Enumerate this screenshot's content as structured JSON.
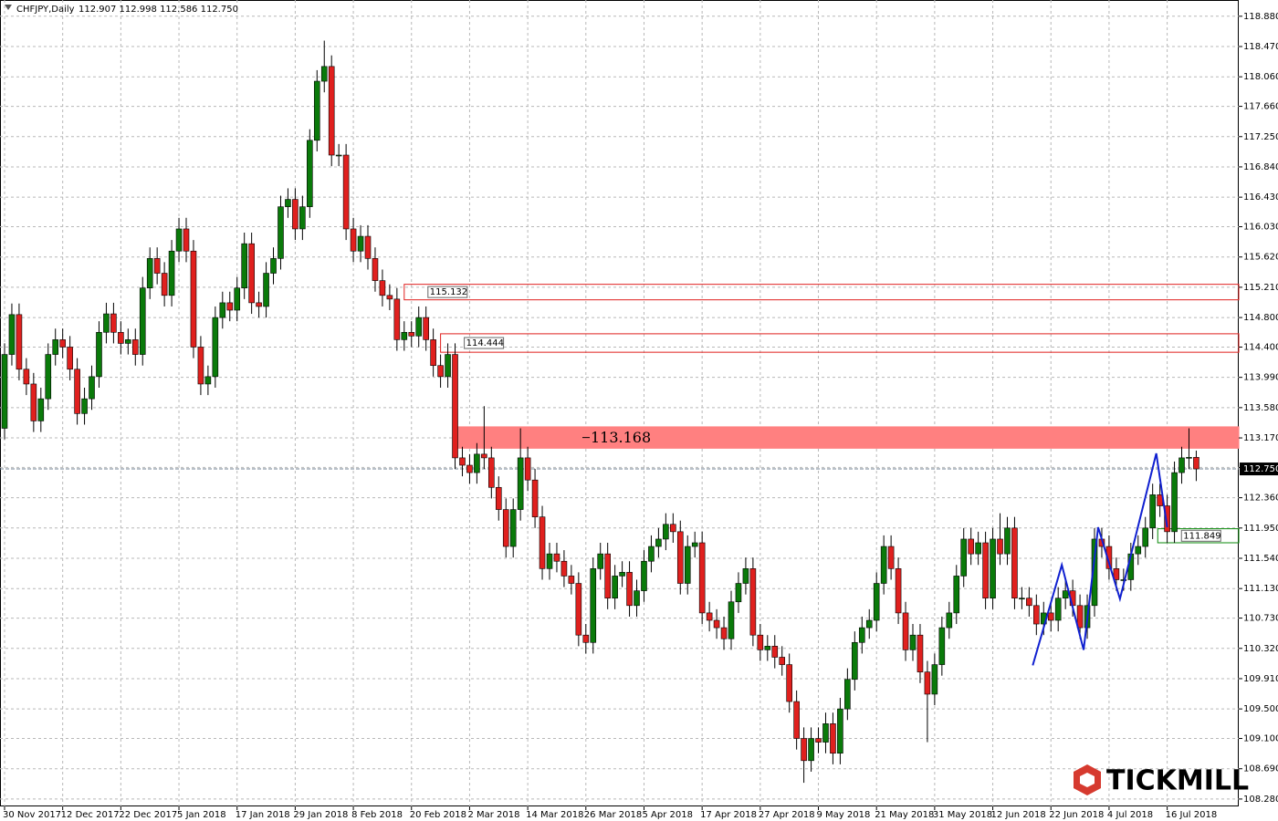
{
  "chart_data": {
    "type": "candlestick",
    "title": "CHFJPY,Daily",
    "subtitle": "112.907 112.998 112.586 112.750",
    "watermark": "TICKMILL",
    "up_color": "#0a7a0a",
    "down_color": "#e0201e",
    "grid": true,
    "ylim": [
      108.18,
      119.1
    ],
    "yticks": [
      {
        "value": 118.88,
        "label": "118.880"
      },
      {
        "value": 118.47,
        "label": "118.470"
      },
      {
        "value": 118.06,
        "label": "118.060"
      },
      {
        "value": 117.66,
        "label": "117.660"
      },
      {
        "value": 117.25,
        "label": "117.250"
      },
      {
        "value": 116.84,
        "label": "116.840"
      },
      {
        "value": 116.43,
        "label": "116.430"
      },
      {
        "value": 116.03,
        "label": "116.030"
      },
      {
        "value": 115.62,
        "label": "115.620"
      },
      {
        "value": 115.21,
        "label": "115.210"
      },
      {
        "value": 114.8,
        "label": "114.800"
      },
      {
        "value": 114.4,
        "label": "114.400"
      },
      {
        "value": 113.99,
        "label": "113.990"
      },
      {
        "value": 113.58,
        "label": "113.580"
      },
      {
        "value": 113.17,
        "label": "113.170"
      },
      {
        "value": 112.77,
        "label": "112.770"
      },
      {
        "value": 112.36,
        "label": "112.360"
      },
      {
        "value": 111.95,
        "label": "111.950"
      },
      {
        "value": 111.54,
        "label": "111.540"
      },
      {
        "value": 111.13,
        "label": "111.130"
      },
      {
        "value": 110.73,
        "label": "110.730"
      },
      {
        "value": 110.32,
        "label": "110.320"
      },
      {
        "value": 109.91,
        "label": "109.910"
      },
      {
        "value": 109.5,
        "label": "109.500"
      },
      {
        "value": 109.1,
        "label": "109.100"
      },
      {
        "value": 108.69,
        "label": "108.690"
      },
      {
        "value": 108.28,
        "label": "108.280"
      }
    ],
    "categories": [
      "30 Nov 2017",
      null,
      null,
      null,
      null,
      null,
      null,
      null,
      "12 Dec 2017",
      null,
      null,
      null,
      null,
      null,
      null,
      null,
      "22 Dec 2017",
      null,
      null,
      null,
      null,
      null,
      null,
      null,
      "5 Jan 2018",
      null,
      null,
      null,
      null,
      null,
      null,
      null,
      "17 Jan 2018",
      null,
      null,
      null,
      null,
      null,
      null,
      null,
      "29 Jan 2018",
      null,
      null,
      null,
      null,
      null,
      null,
      null,
      "8 Feb 2018",
      null,
      null,
      null,
      null,
      null,
      null,
      null,
      "20 Feb 2018",
      null,
      null,
      null,
      null,
      null,
      null,
      null,
      "2 Mar 2018",
      null,
      null,
      null,
      null,
      null,
      null,
      null,
      "14 Mar 2018",
      null,
      null,
      null,
      null,
      null,
      null,
      null,
      "26 Mar 2018",
      null,
      null,
      null,
      null,
      null,
      null,
      null,
      "5 Apr 2018",
      null,
      null,
      null,
      null,
      null,
      null,
      null,
      "17 Apr 2018",
      null,
      null,
      null,
      null,
      null,
      null,
      null,
      "27 Apr 2018",
      null,
      null,
      null,
      null,
      null,
      null,
      null,
      "9 May 2018",
      null,
      null,
      null,
      null,
      null,
      null,
      null,
      "21 May 2018",
      null,
      null,
      null,
      null,
      null,
      null,
      null,
      "31 May 2018",
      null,
      null,
      null,
      null,
      null,
      null,
      null,
      "12 Jun 2018",
      null,
      null,
      null,
      null,
      null,
      null,
      null,
      "22 Jun 2018",
      null,
      null,
      null,
      null,
      null,
      null,
      null,
      "4 Jul 2018",
      null,
      null,
      null,
      null,
      null,
      null,
      null,
      "16 Jul 2018",
      null,
      null,
      null,
      null
    ],
    "candles": [
      [
        113.3,
        114.45,
        113.15,
        114.3
      ],
      [
        114.3,
        114.99,
        114.15,
        114.84
      ],
      [
        114.84,
        114.99,
        113.95,
        114.1
      ],
      [
        114.1,
        114.25,
        113.75,
        113.9
      ],
      [
        113.9,
        114.05,
        113.25,
        113.4
      ],
      [
        113.4,
        113.85,
        113.25,
        113.7
      ],
      [
        113.7,
        114.45,
        113.55,
        114.3
      ],
      [
        114.3,
        114.65,
        114.15,
        114.5
      ],
      [
        114.5,
        114.65,
        114.25,
        114.4
      ],
      [
        114.4,
        114.55,
        113.95,
        114.1
      ],
      [
        114.1,
        114.25,
        113.35,
        113.5
      ],
      [
        113.5,
        113.85,
        113.35,
        113.7
      ],
      [
        113.7,
        114.15,
        113.55,
        114.0
      ],
      [
        114.0,
        114.75,
        113.85,
        114.6
      ],
      [
        114.6,
        115.0,
        114.45,
        114.85
      ],
      [
        114.85,
        115.0,
        114.45,
        114.6
      ],
      [
        114.6,
        114.75,
        114.3,
        114.45
      ],
      [
        114.45,
        114.65,
        114.3,
        114.5
      ],
      [
        114.5,
        114.65,
        114.15,
        114.3
      ],
      [
        114.3,
        115.35,
        114.15,
        115.2
      ],
      [
        115.2,
        115.75,
        115.05,
        115.6
      ],
      [
        115.6,
        115.75,
        115.25,
        115.4
      ],
      [
        115.4,
        115.55,
        114.95,
        115.1
      ],
      [
        115.1,
        115.85,
        114.95,
        115.7
      ],
      [
        115.7,
        116.15,
        115.55,
        116.0
      ],
      [
        116.0,
        116.15,
        115.55,
        115.7
      ],
      [
        115.7,
        115.85,
        114.25,
        114.4
      ],
      [
        114.4,
        114.55,
        113.75,
        113.9
      ],
      [
        113.9,
        114.15,
        113.75,
        114.0
      ],
      [
        114.0,
        114.95,
        113.85,
        114.8
      ],
      [
        114.8,
        115.15,
        114.65,
        115.0
      ],
      [
        115.0,
        115.15,
        114.75,
        114.9
      ],
      [
        114.9,
        115.35,
        114.75,
        115.2
      ],
      [
        115.2,
        115.95,
        115.05,
        115.8
      ],
      [
        115.8,
        115.95,
        114.85,
        115.0
      ],
      [
        115.0,
        115.15,
        114.8,
        114.95
      ],
      [
        114.95,
        115.55,
        114.8,
        115.4
      ],
      [
        115.4,
        115.75,
        115.25,
        115.6
      ],
      [
        115.6,
        116.45,
        115.45,
        116.3
      ],
      [
        116.3,
        116.55,
        116.15,
        116.4
      ],
      [
        116.4,
        116.55,
        115.85,
        116.0
      ],
      [
        116.0,
        116.45,
        115.85,
        116.3
      ],
      [
        116.3,
        117.35,
        116.15,
        117.2
      ],
      [
        117.2,
        118.15,
        117.05,
        118.0
      ],
      [
        118.0,
        118.55,
        117.85,
        118.2
      ],
      [
        118.2,
        118.35,
        116.85,
        117.0
      ],
      [
        117.0,
        117.15,
        116.85,
        117.0
      ],
      [
        117.0,
        117.15,
        115.85,
        116.0
      ],
      [
        116.0,
        116.15,
        115.55,
        115.7
      ],
      [
        115.7,
        116.05,
        115.55,
        115.9
      ],
      [
        115.9,
        116.05,
        115.45,
        115.6
      ],
      [
        115.6,
        115.75,
        115.15,
        115.3
      ],
      [
        115.3,
        115.45,
        114.95,
        115.1
      ],
      [
        115.1,
        115.25,
        114.9,
        115.05
      ],
      [
        115.05,
        115.2,
        114.35,
        114.5
      ],
      [
        114.5,
        114.75,
        114.35,
        114.6
      ],
      [
        114.6,
        114.75,
        114.4,
        114.55
      ],
      [
        114.55,
        114.95,
        114.4,
        114.8
      ],
      [
        114.8,
        114.95,
        114.35,
        114.5
      ],
      [
        114.5,
        114.65,
        114.0,
        114.15
      ],
      [
        114.15,
        114.3,
        113.85,
        114.0
      ],
      [
        114.0,
        114.45,
        113.85,
        114.3
      ],
      [
        114.3,
        114.45,
        112.75,
        112.9
      ],
      [
        112.9,
        113.05,
        112.65,
        112.8
      ],
      [
        112.8,
        112.95,
        112.55,
        112.7
      ],
      [
        112.7,
        113.1,
        112.55,
        112.95
      ],
      [
        112.95,
        113.6,
        112.75,
        112.9
      ],
      [
        112.9,
        113.05,
        112.35,
        112.5
      ],
      [
        112.5,
        112.65,
        112.05,
        112.2
      ],
      [
        112.2,
        112.35,
        111.55,
        111.7
      ],
      [
        111.7,
        112.35,
        111.55,
        112.2
      ],
      [
        112.2,
        113.3,
        112.05,
        112.9
      ],
      [
        112.9,
        113.05,
        112.45,
        112.6
      ],
      [
        112.6,
        112.75,
        111.95,
        112.1
      ],
      [
        112.1,
        112.25,
        111.25,
        111.4
      ],
      [
        111.4,
        111.75,
        111.25,
        111.6
      ],
      [
        111.6,
        111.75,
        111.35,
        111.5
      ],
      [
        111.5,
        111.65,
        111.15,
        111.3
      ],
      [
        111.3,
        111.45,
        111.05,
        111.2
      ],
      [
        111.2,
        111.35,
        110.35,
        110.5
      ],
      [
        110.5,
        110.65,
        110.25,
        110.4
      ],
      [
        110.4,
        111.55,
        110.25,
        111.4
      ],
      [
        111.4,
        111.75,
        111.25,
        111.6
      ],
      [
        111.6,
        111.75,
        110.85,
        111.0
      ],
      [
        111.0,
        111.45,
        110.85,
        111.3
      ],
      [
        111.3,
        111.5,
        111.15,
        111.35
      ],
      [
        111.35,
        111.5,
        110.75,
        110.9
      ],
      [
        110.9,
        111.25,
        110.75,
        111.1
      ],
      [
        111.1,
        111.65,
        110.95,
        111.5
      ],
      [
        111.5,
        111.85,
        111.35,
        111.7
      ],
      [
        111.7,
        111.95,
        111.55,
        111.8
      ],
      [
        111.8,
        112.15,
        111.65,
        112.0
      ],
      [
        112.0,
        112.15,
        111.75,
        111.9
      ],
      [
        111.9,
        112.05,
        111.05,
        111.2
      ],
      [
        111.2,
        111.85,
        111.05,
        111.7
      ],
      [
        111.7,
        111.9,
        111.55,
        111.75
      ],
      [
        111.75,
        111.9,
        110.65,
        110.8
      ],
      [
        110.8,
        110.95,
        110.55,
        110.7
      ],
      [
        110.7,
        110.85,
        110.45,
        110.6
      ],
      [
        110.6,
        110.75,
        110.3,
        110.45
      ],
      [
        110.45,
        111.1,
        110.3,
        110.95
      ],
      [
        110.95,
        111.35,
        110.8,
        111.2
      ],
      [
        111.2,
        111.55,
        111.05,
        111.4
      ],
      [
        111.4,
        111.55,
        110.35,
        110.5
      ],
      [
        110.5,
        110.65,
        110.15,
        110.3
      ],
      [
        110.3,
        110.5,
        110.15,
        110.35
      ],
      [
        110.35,
        110.5,
        110.05,
        110.2
      ],
      [
        110.2,
        110.35,
        109.95,
        110.1
      ],
      [
        110.1,
        110.25,
        109.45,
        109.6
      ],
      [
        109.6,
        109.75,
        108.95,
        109.1
      ],
      [
        109.1,
        109.25,
        108.5,
        108.8
      ],
      [
        108.8,
        109.25,
        108.65,
        109.1
      ],
      [
        109.1,
        109.25,
        108.9,
        109.05
      ],
      [
        109.05,
        109.45,
        108.9,
        109.3
      ],
      [
        109.3,
        109.45,
        108.75,
        108.9
      ],
      [
        108.9,
        109.65,
        108.75,
        109.5
      ],
      [
        109.5,
        110.05,
        109.35,
        109.9
      ],
      [
        109.9,
        110.55,
        109.75,
        110.4
      ],
      [
        110.4,
        110.75,
        110.25,
        110.6
      ],
      [
        110.6,
        110.85,
        110.45,
        110.7
      ],
      [
        110.7,
        111.35,
        110.55,
        111.2
      ],
      [
        111.2,
        111.85,
        111.05,
        111.7
      ],
      [
        111.7,
        111.85,
        111.25,
        111.4
      ],
      [
        111.4,
        111.55,
        110.65,
        110.8
      ],
      [
        110.8,
        110.95,
        110.15,
        110.3
      ],
      [
        110.3,
        110.65,
        110.15,
        110.5
      ],
      [
        110.5,
        110.65,
        109.85,
        110.0
      ],
      [
        110.0,
        110.15,
        109.05,
        109.7
      ],
      [
        109.7,
        110.25,
        109.55,
        110.1
      ],
      [
        110.1,
        110.75,
        109.95,
        110.6
      ],
      [
        110.6,
        110.95,
        110.45,
        110.8
      ],
      [
        110.8,
        111.45,
        110.65,
        111.3
      ],
      [
        111.3,
        111.95,
        111.15,
        111.8
      ],
      [
        111.8,
        111.95,
        111.45,
        111.6
      ],
      [
        111.6,
        111.9,
        111.45,
        111.75
      ],
      [
        111.75,
        111.9,
        110.85,
        111.0
      ],
      [
        111.0,
        111.95,
        110.85,
        111.8
      ],
      [
        111.8,
        112.15,
        111.45,
        111.6
      ],
      [
        111.6,
        112.1,
        111.45,
        111.95
      ],
      [
        111.95,
        112.1,
        110.85,
        111.0
      ],
      [
        111.0,
        111.15,
        110.85,
        111.0
      ],
      [
        111.0,
        111.15,
        110.75,
        110.9
      ],
      [
        110.9,
        111.05,
        110.5,
        110.65
      ],
      [
        110.65,
        110.95,
        110.5,
        110.8
      ],
      [
        110.8,
        110.95,
        110.55,
        110.7
      ],
      [
        110.7,
        111.15,
        110.55,
        111.0
      ],
      [
        111.0,
        111.25,
        110.85,
        111.1
      ],
      [
        111.1,
        111.25,
        110.75,
        110.9
      ],
      [
        110.9,
        111.05,
        110.45,
        110.6
      ],
      [
        110.6,
        111.05,
        110.45,
        110.9
      ],
      [
        110.9,
        111.95,
        110.75,
        111.8
      ],
      [
        111.8,
        111.95,
        111.55,
        111.7
      ],
      [
        111.7,
        111.85,
        111.25,
        111.4
      ],
      [
        111.4,
        111.55,
        111.1,
        111.25
      ],
      [
        111.25,
        111.4,
        111.1,
        111.25
      ],
      [
        111.25,
        111.75,
        111.1,
        111.6
      ],
      [
        111.6,
        111.85,
        111.45,
        111.7
      ],
      [
        111.7,
        112.1,
        111.55,
        111.95
      ],
      [
        111.95,
        112.55,
        111.8,
        112.4
      ],
      [
        112.4,
        112.55,
        112.1,
        112.25
      ],
      [
        112.25,
        112.4,
        111.75,
        111.9
      ],
      [
        111.9,
        112.85,
        111.75,
        112.7
      ],
      [
        112.7,
        113.05,
        112.55,
        112.9
      ],
      [
        112.9,
        113.3,
        112.75,
        112.907
      ],
      [
        112.907,
        112.998,
        112.586,
        112.75
      ]
    ],
    "current_price": {
      "value": 112.75,
      "label": "112.750"
    },
    "zones": [
      {
        "top": 115.25,
        "bottom": 115.04,
        "start": 55,
        "label": "115.132",
        "color": "#e0201e",
        "filled": false
      },
      {
        "top": 114.58,
        "bottom": 114.33,
        "start": 60,
        "label": "114.444",
        "color": "#e0201e",
        "filled": false
      },
      {
        "top": 113.32,
        "bottom": 113.03,
        "start": 62,
        "label": "113.168",
        "color": "#ff8080",
        "filled": true
      },
      {
        "top": 111.94,
        "bottom": 111.75,
        "start": 158.7,
        "label": "111.849",
        "color": "#0a8a0a",
        "filled": false
      }
    ],
    "zigzag": {
      "color": "#1020d0",
      "points": [
        [
          141.5,
          110.09
        ],
        [
          145.5,
          111.45
        ],
        [
          148.5,
          110.3
        ],
        [
          150.5,
          111.96
        ],
        [
          153.5,
          110.99
        ],
        [
          158.5,
          112.96
        ],
        [
          160,
          111.96
        ]
      ]
    }
  }
}
